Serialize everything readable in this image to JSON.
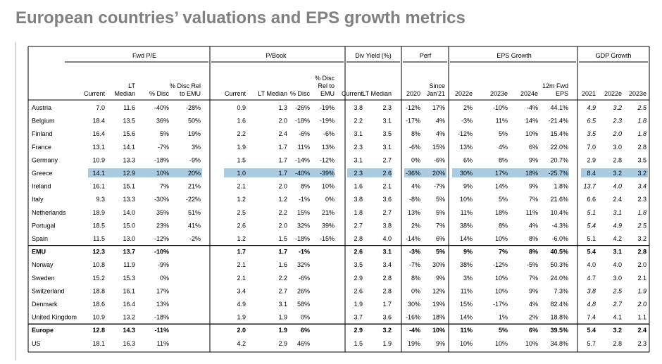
{
  "title": "European countries’ valuations and EPS growth metrics",
  "groups": [
    "Fwd P/E",
    "P/Book",
    "Div Yield (%)",
    "Perf",
    "EPS Growth",
    "GDP Growth"
  ],
  "subheaders": [
    [
      "Current"
    ],
    [
      "LT",
      "Median"
    ],
    [
      "% Disc"
    ],
    [
      "% Disc Rel",
      "to EMU"
    ],
    [
      "Current"
    ],
    [
      "LT Median"
    ],
    [
      "% Disc"
    ],
    [
      "% Disc",
      "Rel to",
      "EMU"
    ],
    [
      "Current"
    ],
    [
      "LT Median"
    ],
    [
      "2020"
    ],
    [
      "Since",
      "Jan'21"
    ],
    [
      "2022e"
    ],
    [
      "2023e"
    ],
    [
      "2024e"
    ],
    [
      "12m Fwd",
      "EPS"
    ],
    [
      "2021"
    ],
    [
      "2022e"
    ],
    [
      "2023e"
    ]
  ],
  "rows": [
    {
      "type": "normal",
      "cells": [
        "Austria",
        "7.0",
        "11.6",
        "-40%",
        "-28%",
        "0.9",
        "1.3",
        "-26%",
        "-19%",
        "3.8",
        "2.3",
        "-12%",
        "17%",
        "2%",
        "-10%",
        "-4%",
        "44.1%",
        "4.9",
        "3.2",
        "2.5"
      ]
    },
    {
      "type": "normal",
      "cells": [
        "Belgium",
        "18.4",
        "13.5",
        "36%",
        "50%",
        "1.6",
        "2.0",
        "-18%",
        "-19%",
        "2.2",
        "3.1",
        "-17%",
        "4%",
        "-3%",
        "11%",
        "14%",
        "-21.4%",
        "6.5",
        "2.3",
        "1.8"
      ]
    },
    {
      "type": "normal",
      "cells": [
        "Finland",
        "16.4",
        "15.6",
        "5%",
        "19%",
        "2.2",
        "2.4",
        "-6%",
        "-6%",
        "3.1",
        "3.5",
        "8%",
        "4%",
        "-12%",
        "5%",
        "10%",
        "15.4%",
        "3.5",
        "2.0",
        "1.8"
      ]
    },
    {
      "type": "normal",
      "cells": [
        "France",
        "13.1",
        "14.1",
        "-7%",
        "3%",
        "1.9",
        "1.7",
        "11%",
        "13%",
        "2.3",
        "3.1",
        "-6%",
        "15%",
        "13%",
        "4%",
        "6%",
        "22.0%",
        "7.0",
        "3.0",
        "2.8"
      ]
    },
    {
      "type": "normal",
      "cells": [
        "Germany",
        "10.9",
        "13.3",
        "-18%",
        "-9%",
        "1.5",
        "1.7",
        "-14%",
        "-12%",
        "3.1",
        "2.7",
        "0%",
        "-6%",
        "6%",
        "8%",
        "9%",
        "20.7%",
        "2.9",
        "2.8",
        "3.5"
      ]
    },
    {
      "type": "highlight",
      "cells": [
        "Greece",
        "14.1",
        "12.9",
        "10%",
        "20%",
        "1.0",
        "1.7",
        "-40%",
        "-39%",
        "2.3",
        "2.6",
        "-36%",
        "20%",
        "30%",
        "17%",
        "18%",
        "-25.7%",
        "8.4",
        "3.2",
        "3.2"
      ]
    },
    {
      "type": "normal",
      "cells": [
        "Ireland",
        "16.1",
        "15.1",
        "7%",
        "21%",
        "2.1",
        "2.0",
        "8%",
        "10%",
        "1.6",
        "2.1",
        "4%",
        "-7%",
        "9%",
        "14%",
        "9%",
        "1.8%",
        "13.7",
        "4.0",
        "3.4"
      ]
    },
    {
      "type": "normal",
      "cells": [
        "Italy",
        "9.3",
        "13.3",
        "-30%",
        "-22%",
        "1.2",
        "1.2",
        "-1%",
        "0%",
        "3.8",
        "3.6",
        "-8%",
        "5%",
        "10%",
        "5%",
        "7%",
        "21.6%",
        "6.6",
        "2.4",
        "2.3"
      ]
    },
    {
      "type": "normal",
      "cells": [
        "Netherlands",
        "18.9",
        "14.0",
        "35%",
        "51%",
        "2.5",
        "2.2",
        "15%",
        "21%",
        "1.8",
        "2.7",
        "13%",
        "5%",
        "11%",
        "18%",
        "11%",
        "10.4%",
        "5.1",
        "3.1",
        "1.8"
      ]
    },
    {
      "type": "normal",
      "cells": [
        "Portugal",
        "18.5",
        "15.0",
        "23%",
        "41%",
        "2.6",
        "2.0",
        "32%",
        "39%",
        "2.7",
        "3.8",
        "2%",
        "7%",
        "38%",
        "8%",
        "4%",
        "-4.3%",
        "5.4",
        "4.9",
        "2.5"
      ]
    },
    {
      "type": "normal",
      "cells": [
        "Spain",
        "11.5",
        "13.0",
        "-12%",
        "-2%",
        "1.2",
        "1.5",
        "-18%",
        "-15%",
        "2.8",
        "4.0",
        "-14%",
        "6%",
        "14%",
        "10%",
        "8%",
        "-6.0%",
        "5.1",
        "4.2",
        "3.2"
      ]
    },
    {
      "type": "bold",
      "cells": [
        "EMU",
        "12.3",
        "13.7",
        "-10%",
        "",
        "1.7",
        "1.7",
        "-1%",
        "",
        "2.6",
        "3.1",
        "-3%",
        "5%",
        "9%",
        "7%",
        "8%",
        "40.5%",
        "5.4",
        "3.1",
        "2.8"
      ]
    },
    {
      "type": "normal",
      "cells": [
        "Norway",
        "10.8",
        "11.9",
        "-9%",
        "",
        "2.1",
        "1.6",
        "32%",
        "",
        "3.5",
        "3.4",
        "-7%",
        "30%",
        "38%",
        "-12%",
        "-5%",
        "50.3%",
        "4.0",
        "4.0",
        "2.0"
      ]
    },
    {
      "type": "normal",
      "cells": [
        "Sweden",
        "15.2",
        "15.3",
        "0%",
        "",
        "2.1",
        "2.2",
        "-6%",
        "",
        "2.9",
        "2.8",
        "8%",
        "9%",
        "3%",
        "10%",
        "7%",
        "24.0%",
        "4.7",
        "3.0",
        "2.1"
      ]
    },
    {
      "type": "normal",
      "cells": [
        "Switzerland",
        "18.8",
        "16.1",
        "17%",
        "",
        "3.4",
        "2.7",
        "26%",
        "",
        "2.6",
        "2.8",
        "0%",
        "12%",
        "11%",
        "10%",
        "9%",
        "7.3%",
        "3.8",
        "2.5",
        "1.9"
      ]
    },
    {
      "type": "normal",
      "cells": [
        "Denmark",
        "18.6",
        "16.4",
        "13%",
        "",
        "4.9",
        "3.1",
        "58%",
        "",
        "1.9",
        "1.7",
        "30%",
        "19%",
        "15%",
        "-17%",
        "4%",
        "82.4%",
        "4.8",
        "2.7",
        "2.0"
      ]
    },
    {
      "type": "normal",
      "cells": [
        "United Kingdom",
        "10.9",
        "13.2",
        "-18%",
        "",
        "1.9",
        "1.9",
        "0%",
        "",
        "3.7",
        "3.6",
        "-16%",
        "18%",
        "14%",
        "1%",
        "2%",
        "18.8%",
        "7.4",
        "4.1",
        "1.1"
      ]
    },
    {
      "type": "bold",
      "cells": [
        "Europe",
        "12.8",
        "14.3",
        "-11%",
        "",
        "2.0",
        "1.9",
        "6%",
        "",
        "2.9",
        "3.2",
        "-4%",
        "10%",
        "11%",
        "5%",
        "6%",
        "39.5%",
        "5.4",
        "3.2",
        "2.4"
      ]
    },
    {
      "type": "normal",
      "cells": [
        "US",
        "18.1",
        "16.3",
        "11%",
        "",
        "4.2",
        "2.9",
        "46%",
        "",
        "1.5",
        "1.9",
        "19%",
        "9%",
        "10%",
        "10%",
        "10%",
        "34.8%",
        "5.7",
        "2.8",
        "2.3"
      ]
    }
  ],
  "colors": {
    "highlight": "#a9cce3",
    "title": "#808080",
    "grid": "#000000"
  }
}
